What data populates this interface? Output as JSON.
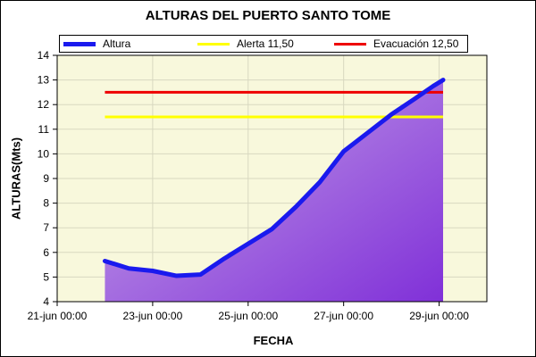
{
  "chart_data": {
    "type": "area",
    "title": "ALTURAS DEL PUERTO SANTO TOME",
    "xlabel": "FECHA",
    "ylabel": "ALTURAS(Mts)",
    "xlim": [
      "2021-06-21 00:00",
      "2021-06-30 00:00"
    ],
    "ylim": [
      4,
      14
    ],
    "y_ticks": [
      4,
      5,
      6,
      7,
      8,
      9,
      10,
      11,
      12,
      13,
      14
    ],
    "x_ticks": [
      {
        "date": "2021-06-21 00:00",
        "label": "21-jun 00:00"
      },
      {
        "date": "2021-06-23 00:00",
        "label": "23-jun 00:00"
      },
      {
        "date": "2021-06-25 00:00",
        "label": "25-jun 00:00"
      },
      {
        "date": "2021-06-27 00:00",
        "label": "27-jun 00:00"
      },
      {
        "date": "2021-06-29 00:00",
        "label": "29-jun 00:00"
      }
    ],
    "grid": true,
    "legend_placement": "top",
    "series": [
      {
        "name": "Altura",
        "color": "#1a1aee",
        "points": [
          {
            "x": "2021-06-22 00:00",
            "y": 5.65
          },
          {
            "x": "2021-06-22 12:00",
            "y": 5.35
          },
          {
            "x": "2021-06-23 00:00",
            "y": 5.25
          },
          {
            "x": "2021-06-23 12:00",
            "y": 5.05
          },
          {
            "x": "2021-06-24 00:00",
            "y": 5.1
          },
          {
            "x": "2021-06-24 12:00",
            "y": 5.75
          },
          {
            "x": "2021-06-25 00:00",
            "y": 6.35
          },
          {
            "x": "2021-06-25 12:00",
            "y": 6.95
          },
          {
            "x": "2021-06-26 00:00",
            "y": 7.85
          },
          {
            "x": "2021-06-26 12:00",
            "y": 8.85
          },
          {
            "x": "2021-06-27 00:00",
            "y": 10.1
          },
          {
            "x": "2021-06-27 12:00",
            "y": 10.85
          },
          {
            "x": "2021-06-28 00:00",
            "y": 11.6
          },
          {
            "x": "2021-06-28 12:00",
            "y": 12.25
          },
          {
            "x": "2021-06-28 21:00",
            "y": 12.75
          },
          {
            "x": "2021-06-29 02:00",
            "y": 13.0
          }
        ]
      },
      {
        "name": "Alerta 11,50",
        "color": "#ffff00",
        "points": [
          {
            "x": "2021-06-22 00:00",
            "y": 11.5
          },
          {
            "x": "2021-06-29 02:00",
            "y": 11.5
          }
        ]
      },
      {
        "name": "Evacuación 12,50",
        "color": "#ee0000",
        "points": [
          {
            "x": "2021-06-22 00:00",
            "y": 12.5
          },
          {
            "x": "2021-06-29 02:00",
            "y": 12.5
          }
        ]
      }
    ],
    "colors": {
      "plot_background": "#f8f8dc",
      "area_fill_top": "#c8a8e8",
      "area_fill_bottom": "#8030d8"
    }
  }
}
